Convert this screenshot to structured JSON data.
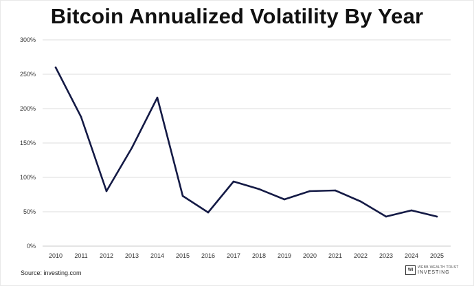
{
  "chart_data": {
    "type": "line",
    "title": "Bitcoin Annualized Volatility By Year",
    "xlabel": "",
    "ylabel": "",
    "categories": [
      "2010",
      "2011",
      "2012",
      "2013",
      "2014",
      "2015",
      "2016",
      "2017",
      "2018",
      "2019",
      "2020",
      "2021",
      "2022",
      "2023",
      "2024",
      "2025"
    ],
    "series": [
      {
        "name": "Annualized Volatility",
        "values": [
          260,
          188,
          80,
          143,
          216,
          73,
          49,
          94,
          83,
          68,
          80,
          81,
          65,
          43,
          52,
          43
        ]
      }
    ],
    "ylim": [
      0,
      300
    ],
    "yticks": [
      0,
      50,
      100,
      150,
      200,
      250,
      300
    ],
    "ytick_labels": [
      "0%",
      "50%",
      "100%",
      "150%",
      "200%",
      "250%",
      "300%"
    ],
    "grid": true,
    "line_color": "#141a45"
  },
  "footer": {
    "source": "Source: investing.com",
    "brand_mark": "WI",
    "brand_line1": "WEBB WEALTH TRUST",
    "brand_line2": "INVESTING"
  }
}
